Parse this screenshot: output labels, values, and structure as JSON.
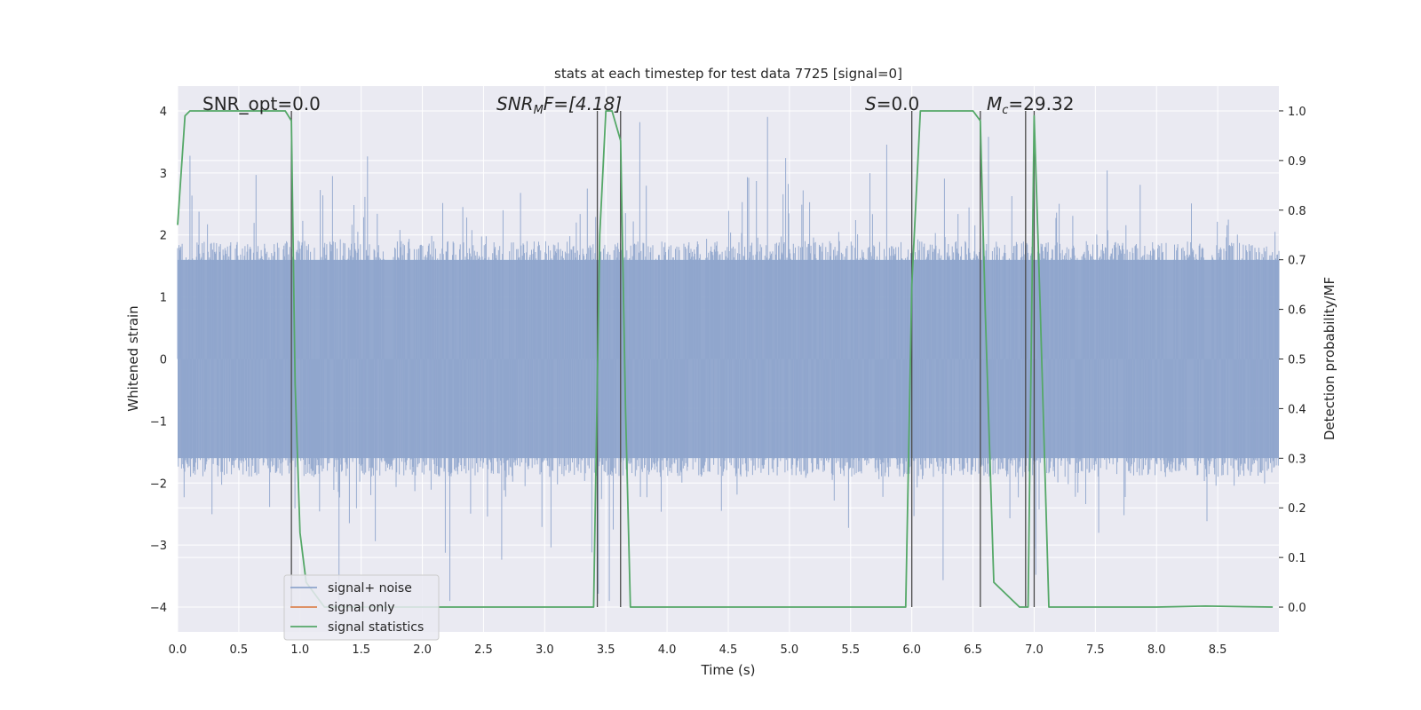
{
  "chart_data": {
    "type": "line",
    "title": "stats at each timestep for test data 7725 [signal=0]",
    "xlabel": "Time (s)",
    "ylabel": "Whitened strain",
    "ylabel_right": "Detection probability/MF",
    "xlim": [
      0.0,
      9.0
    ],
    "ylim": [
      -4.4,
      4.4
    ],
    "ylim_right": [
      -0.05,
      1.05
    ],
    "x_ticks": [
      "0.0",
      "0.5",
      "1.0",
      "1.5",
      "2.0",
      "2.5",
      "3.0",
      "3.5",
      "4.0",
      "4.5",
      "5.0",
      "5.5",
      "6.0",
      "6.5",
      "7.0",
      "7.5",
      "8.0",
      "8.5"
    ],
    "y_ticks": [
      "4",
      "3",
      "2",
      "1",
      "0",
      "−1",
      "−2",
      "−3",
      "−4"
    ],
    "y_ticks_right": [
      "1.0",
      "0.9",
      "0.8",
      "0.7",
      "0.6",
      "0.5",
      "0.4",
      "0.3",
      "0.2",
      "0.1",
      "0.0"
    ],
    "grid": true,
    "legend_position": "lower-left",
    "annotations": {
      "snr_opt": "SNR_opt=0.0",
      "snr_mf_prefix": "SNR",
      "snr_mf_sub": "M",
      "snr_mf_suffix": "F=[4.18]",
      "s_prefix": "S",
      "s_suffix": "=0.0",
      "mc_prefix": "M",
      "mc_sub": "c",
      "mc_suffix": "=29.32"
    },
    "series": [
      {
        "name": "signal+ noise",
        "color": "#8fa5cc",
        "summary": "whitened noise, typical amplitude about ±1.6, peaks up to about ±4",
        "envelope_abs": 1.6,
        "peak_range": [
          -3.9,
          4.0
        ]
      },
      {
        "name": "signal only",
        "color": "#dd8452",
        "x": [],
        "y": []
      },
      {
        "name": "signal statistics",
        "color": "#55a868",
        "axis": "right",
        "x": [
          0.0,
          0.06,
          0.1,
          0.2,
          0.5,
          0.88,
          0.93,
          0.96,
          1.0,
          1.05,
          1.2,
          1.5,
          2.0,
          2.5,
          3.0,
          3.4,
          3.45,
          3.5,
          3.55,
          3.62,
          3.66,
          3.7,
          4.0,
          5.0,
          5.95,
          6.0,
          6.07,
          6.2,
          6.5,
          6.56,
          6.6,
          6.67,
          6.88,
          6.95,
          7.0,
          7.05,
          7.12,
          7.5,
          8.0,
          8.4,
          8.95
        ],
        "y": [
          0.77,
          0.99,
          1.0,
          1.0,
          1.0,
          1.0,
          0.98,
          0.45,
          0.15,
          0.05,
          0.0,
          0.0,
          0.0,
          0.0,
          0.0,
          0.0,
          0.75,
          1.0,
          1.0,
          0.94,
          0.4,
          0.0,
          0.0,
          0.0,
          0.0,
          0.65,
          1.0,
          1.0,
          1.0,
          0.98,
          0.6,
          0.05,
          0.0,
          0.0,
          0.99,
          0.6,
          0.0,
          0.0,
          0.0,
          0.002,
          0.0
        ]
      }
    ],
    "vertical_markers_x": [
      0.93,
      3.43,
      3.62,
      6.0,
      6.56,
      6.93,
      7.0
    ]
  }
}
